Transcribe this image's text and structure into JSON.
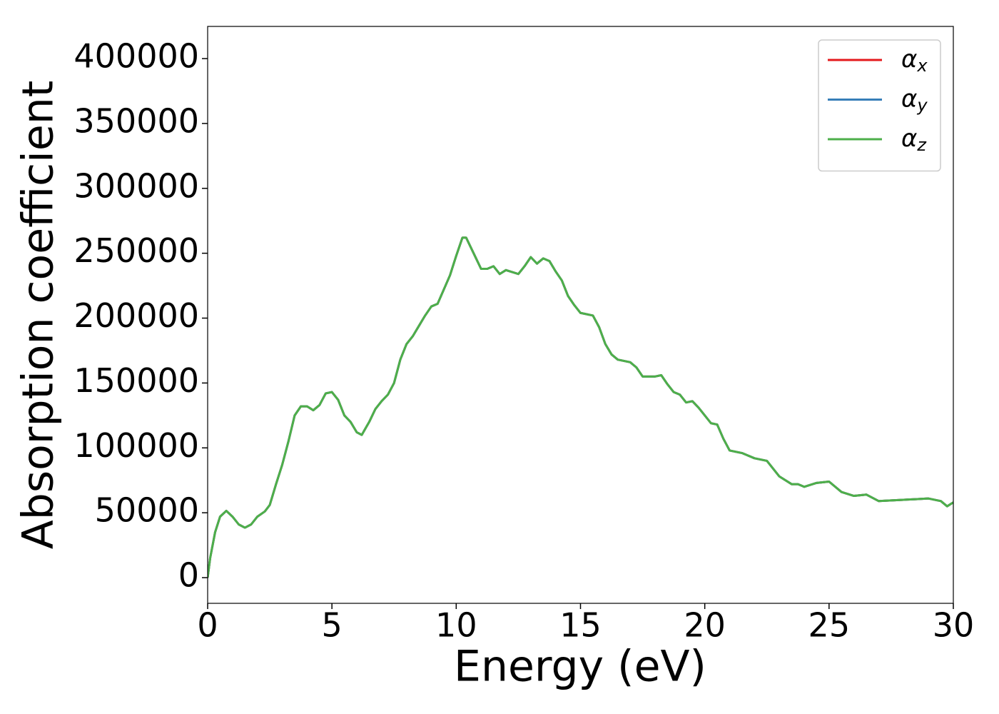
{
  "chart_data": {
    "type": "line",
    "xlabel": "Energy (eV)",
    "ylabel": "Absorption coefficient",
    "x": [
      0,
      0.1,
      0.3,
      0.5,
      0.75,
      1.0,
      1.25,
      1.5,
      1.75,
      2.0,
      2.3,
      2.5,
      2.75,
      3.0,
      3.25,
      3.5,
      3.75,
      4.0,
      4.25,
      4.5,
      4.75,
      5.0,
      5.25,
      5.5,
      5.75,
      6.0,
      6.2,
      6.5,
      6.75,
      7.0,
      7.25,
      7.5,
      7.75,
      8.0,
      8.25,
      8.5,
      8.75,
      9.0,
      9.25,
      9.5,
      9.75,
      10.0,
      10.25,
      10.4,
      10.75,
      11.0,
      11.25,
      11.5,
      11.75,
      12.0,
      12.5,
      12.75,
      13.0,
      13.25,
      13.5,
      13.75,
      14.0,
      14.25,
      14.5,
      14.75,
      15.0,
      15.5,
      15.75,
      16.0,
      16.25,
      16.5,
      17.0,
      17.25,
      17.5,
      18.0,
      18.25,
      18.5,
      18.75,
      19.0,
      19.25,
      19.5,
      19.75,
      20.0,
      20.25,
      20.5,
      20.75,
      21.0,
      21.5,
      22.0,
      22.5,
      23.0,
      23.5,
      23.75,
      24.0,
      24.5,
      25.0,
      25.5,
      26.0,
      26.5,
      27.0,
      27.5,
      28.0,
      28.5,
      29.0,
      29.5,
      29.75,
      30.0
    ],
    "series": [
      {
        "name": "αx",
        "color": "#e41a1c",
        "values": [
          0,
          15000,
          35000,
          47000,
          51500,
          47000,
          41000,
          38500,
          41000,
          47000,
          51000,
          56000,
          72000,
          87000,
          105000,
          125000,
          132000,
          132000,
          129000,
          133000,
          142000,
          143000,
          137000,
          125000,
          120000,
          112000,
          110000,
          120000,
          130000,
          136000,
          141000,
          150000,
          168000,
          180000,
          186000,
          194000,
          202000,
          209000,
          211000,
          222000,
          233000,
          248000,
          262000,
          262000,
          248000,
          238000,
          238000,
          240000,
          234000,
          237000,
          234000,
          240000,
          247000,
          242000,
          246000,
          244000,
          236000,
          229000,
          217000,
          210000,
          204000,
          202000,
          193000,
          180000,
          172000,
          168000,
          166000,
          162000,
          155000,
          155000,
          156000,
          149000,
          143000,
          141000,
          135000,
          136000,
          131000,
          125000,
          119000,
          118000,
          107000,
          98000,
          96000,
          92000,
          90000,
          78000,
          72000,
          72000,
          70000,
          73000,
          74000,
          66000,
          63000,
          64000,
          59000,
          59500,
          60000,
          60500,
          61000,
          59000,
          55000,
          58000
        ]
      },
      {
        "name": "αy",
        "color": "#377eb8",
        "values": [
          0,
          15000,
          35000,
          47000,
          51500,
          47000,
          41000,
          38500,
          41000,
          47000,
          51000,
          56000,
          72000,
          87000,
          105000,
          125000,
          132000,
          132000,
          129000,
          133000,
          142000,
          143000,
          137000,
          125000,
          120000,
          112000,
          110000,
          120000,
          130000,
          136000,
          141000,
          150000,
          168000,
          180000,
          186000,
          194000,
          202000,
          209000,
          211000,
          222000,
          233000,
          248000,
          262000,
          262000,
          248000,
          238000,
          238000,
          240000,
          234000,
          237000,
          234000,
          240000,
          247000,
          242000,
          246000,
          244000,
          236000,
          229000,
          217000,
          210000,
          204000,
          202000,
          193000,
          180000,
          172000,
          168000,
          166000,
          162000,
          155000,
          155000,
          156000,
          149000,
          143000,
          141000,
          135000,
          136000,
          131000,
          125000,
          119000,
          118000,
          107000,
          98000,
          96000,
          92000,
          90000,
          78000,
          72000,
          72000,
          70000,
          73000,
          74000,
          66000,
          63000,
          64000,
          59000,
          59500,
          60000,
          60500,
          61000,
          59000,
          55000,
          58000
        ]
      },
      {
        "name": "αz",
        "color": "#4daf4a",
        "values": [
          0,
          15000,
          35000,
          47000,
          51500,
          47000,
          41000,
          38500,
          41000,
          47000,
          51000,
          56000,
          72000,
          87000,
          105000,
          125000,
          132000,
          132000,
          129000,
          133000,
          142000,
          143000,
          137000,
          125000,
          120000,
          112000,
          110000,
          120000,
          130000,
          136000,
          141000,
          150000,
          168000,
          180000,
          186000,
          194000,
          202000,
          209000,
          211000,
          222000,
          233000,
          248000,
          262000,
          262000,
          248000,
          238000,
          238000,
          240000,
          234000,
          237000,
          234000,
          240000,
          247000,
          242000,
          246000,
          244000,
          236000,
          229000,
          217000,
          210000,
          204000,
          202000,
          193000,
          180000,
          172000,
          168000,
          166000,
          162000,
          155000,
          155000,
          156000,
          149000,
          143000,
          141000,
          135000,
          136000,
          131000,
          125000,
          119000,
          118000,
          107000,
          98000,
          96000,
          92000,
          90000,
          78000,
          72000,
          72000,
          70000,
          73000,
          74000,
          66000,
          63000,
          64000,
          59000,
          59500,
          60000,
          60500,
          61000,
          59000,
          55000,
          58000
        ]
      }
    ],
    "xlim": [
      0,
      30
    ],
    "xticks": [
      0,
      5,
      10,
      15,
      20,
      25,
      30
    ],
    "ylim": [
      -19800,
      424800
    ],
    "yticks": [
      0,
      50000,
      100000,
      150000,
      200000,
      250000,
      300000,
      350000,
      400000
    ],
    "grid": false,
    "legend": "upper right"
  }
}
